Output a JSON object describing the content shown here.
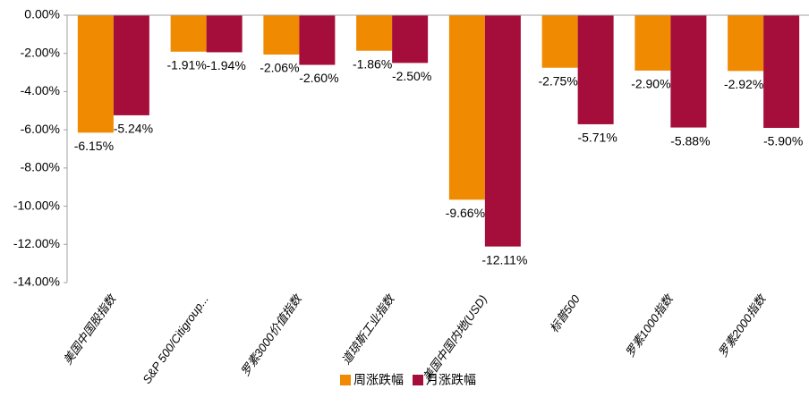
{
  "chart_data": {
    "type": "bar",
    "categories": [
      "美国中国股指数",
      "S&P 500/Citigroup...",
      "罗素3000价值指数",
      "道琼斯工业指数",
      "美国中国内地(USD)",
      "标普500",
      "罗素1000指数",
      "罗素2000指数"
    ],
    "series": [
      {
        "name": "周涨跌幅",
        "color": "#f08a00",
        "values": [
          -6.15,
          -1.91,
          -2.06,
          -1.86,
          -9.66,
          -2.75,
          -2.9,
          -2.92
        ],
        "value_labels": [
          "-6.15%",
          "-1.91%",
          "-2.06%",
          "-1.86%",
          "-9.66%",
          "-2.75%",
          "-2.90%",
          "-2.92%"
        ]
      },
      {
        "name": "月涨跌幅",
        "color": "#a50d3a",
        "values": [
          -5.24,
          -1.94,
          -2.6,
          -2.5,
          -12.11,
          -5.71,
          -5.88,
          -5.9
        ],
        "value_labels": [
          "-5.24%",
          "-1.94%",
          "-2.60%",
          "-2.50%",
          "-12.11%",
          "-5.71%",
          "-5.88%",
          "-5.90%"
        ]
      }
    ],
    "ylim": [
      -14,
      0
    ],
    "yticks": [
      {
        "value": 0,
        "label": "0.00%"
      },
      {
        "value": -2,
        "label": "-2.00%"
      },
      {
        "value": -4,
        "label": "-4.00%"
      },
      {
        "value": -6,
        "label": "-6.00%"
      },
      {
        "value": -8,
        "label": "-8.00%"
      },
      {
        "value": -10,
        "label": "-10.00%"
      },
      {
        "value": -12,
        "label": "-12.00%"
      },
      {
        "value": -14,
        "label": "-14.00%"
      }
    ],
    "legend": "bottom"
  }
}
